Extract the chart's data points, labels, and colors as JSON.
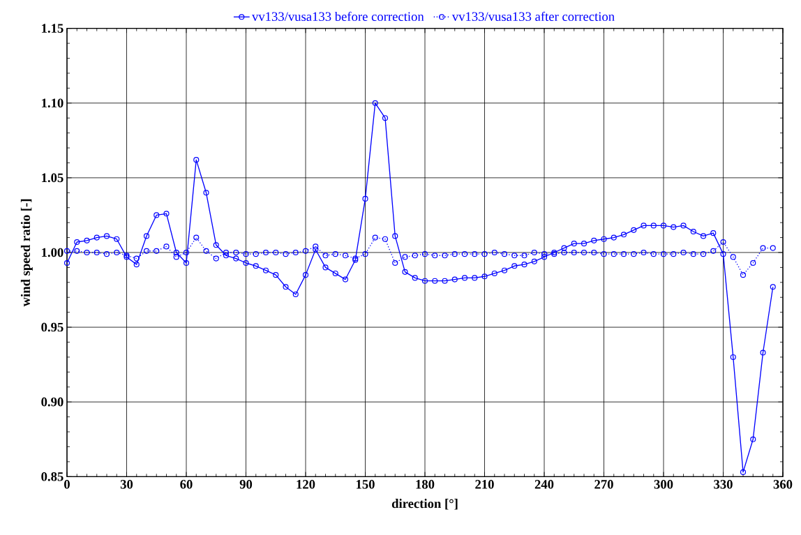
{
  "chart_data": {
    "type": "line",
    "xlabel": "direction [°]",
    "ylabel": "wind speed ratio [-]",
    "x": [
      0,
      5,
      10,
      15,
      20,
      25,
      30,
      35,
      40,
      45,
      50,
      55,
      60,
      65,
      70,
      75,
      80,
      85,
      90,
      95,
      100,
      105,
      110,
      115,
      120,
      125,
      130,
      135,
      140,
      145,
      150,
      155,
      160,
      165,
      170,
      175,
      180,
      185,
      190,
      195,
      200,
      205,
      210,
      215,
      220,
      225,
      230,
      235,
      240,
      245,
      250,
      255,
      260,
      265,
      270,
      275,
      280,
      285,
      290,
      295,
      300,
      305,
      310,
      315,
      320,
      325,
      330,
      335,
      340,
      345,
      350,
      355
    ],
    "series": [
      {
        "name": "vv133/vusa133 before correction",
        "color": "#0000ff",
        "line_style": "solid",
        "values": [
          0.993,
          1.007,
          1.008,
          1.01,
          1.011,
          1.009,
          0.997,
          0.992,
          1.011,
          1.025,
          1.026,
          1.0,
          0.993,
          1.062,
          1.04,
          1.005,
          0.998,
          0.996,
          0.993,
          0.991,
          0.988,
          0.985,
          0.977,
          0.972,
          0.985,
          1.002,
          0.99,
          0.986,
          0.982,
          0.995,
          1.036,
          1.1,
          1.09,
          1.011,
          0.987,
          0.983,
          0.981,
          0.981,
          0.981,
          0.982,
          0.983,
          0.983,
          0.984,
          0.986,
          0.988,
          0.991,
          0.992,
          0.994,
          0.997,
          1.0,
          1.003,
          1.006,
          1.006,
          1.008,
          1.009,
          1.01,
          1.012,
          1.015,
          1.018,
          1.018,
          1.018,
          1.017,
          1.018,
          1.014,
          1.011,
          1.013,
          0.999,
          0.93,
          0.853,
          0.875,
          0.933,
          0.977
        ]
      },
      {
        "name": "vv133/vusa133 after correction",
        "color": "#0000ff",
        "line_style": "dotted",
        "values": [
          1.001,
          1.001,
          1.0,
          1.0,
          0.999,
          1.0,
          0.998,
          0.996,
          1.001,
          1.001,
          1.004,
          0.997,
          1.0,
          1.01,
          1.001,
          0.996,
          1.0,
          1.0,
          0.999,
          0.999,
          1.0,
          1.0,
          0.999,
          1.0,
          1.001,
          1.004,
          0.998,
          0.999,
          0.998,
          0.996,
          0.999,
          1.01,
          1.009,
          0.993,
          0.997,
          0.998,
          0.999,
          0.998,
          0.998,
          0.999,
          0.999,
          0.999,
          0.999,
          1.0,
          0.999,
          0.998,
          0.998,
          1.0,
          0.999,
          0.999,
          1.0,
          1.0,
          1.0,
          1.0,
          0.999,
          0.999,
          0.999,
          0.999,
          1.0,
          0.999,
          0.999,
          0.999,
          1.0,
          0.999,
          0.999,
          1.001,
          1.007,
          0.997,
          0.985,
          0.993,
          1.003,
          1.003
        ]
      }
    ],
    "xlim": [
      0,
      360
    ],
    "xticks": [
      0,
      30,
      60,
      90,
      120,
      150,
      180,
      210,
      240,
      270,
      300,
      330,
      360
    ],
    "ylim": [
      0.85,
      1.15
    ],
    "yticks": [
      {
        "value": 0.85,
        "label": "0.85"
      },
      {
        "value": 0.9,
        "label": "0.90"
      },
      {
        "value": 0.95,
        "label": "0.95"
      },
      {
        "value": 1.0,
        "label": "1.00"
      },
      {
        "value": 1.05,
        "label": "1.05"
      },
      {
        "value": 1.1,
        "label": "1.10"
      },
      {
        "value": 1.15,
        "label": "1.15"
      }
    ],
    "grid": true,
    "legend": "top",
    "marker": "circle"
  }
}
